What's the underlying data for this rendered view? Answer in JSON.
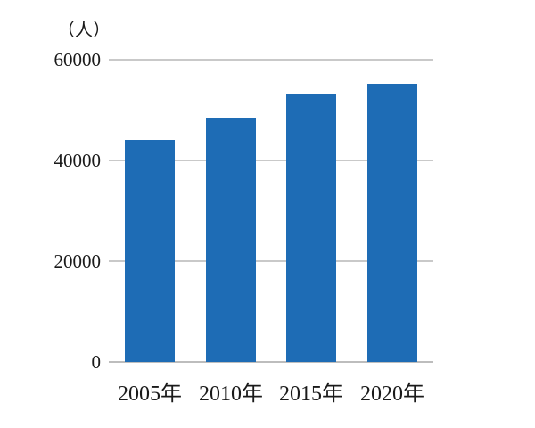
{
  "chart_data": {
    "type": "bar",
    "title": "",
    "unit_label": "（人）",
    "ylabel": "（人）",
    "xlabel": "",
    "categories": [
      "2005年",
      "2010年",
      "2015年",
      "2020年"
    ],
    "values": [
      44000,
      48500,
      53300,
      55200
    ],
    "y_ticks": [
      "60000",
      "40000",
      "20000",
      "0"
    ],
    "ylim": [
      0,
      60000
    ],
    "grid": "horizontal-only",
    "legend": "none",
    "bar_color": "#1E6CB5"
  },
  "colors": {
    "bar": "#1E6CB5",
    "gridline": "#c9c9c9",
    "axis_line": "#bdbdbd",
    "text": "#1a1a1a",
    "background": "#ffffff"
  }
}
